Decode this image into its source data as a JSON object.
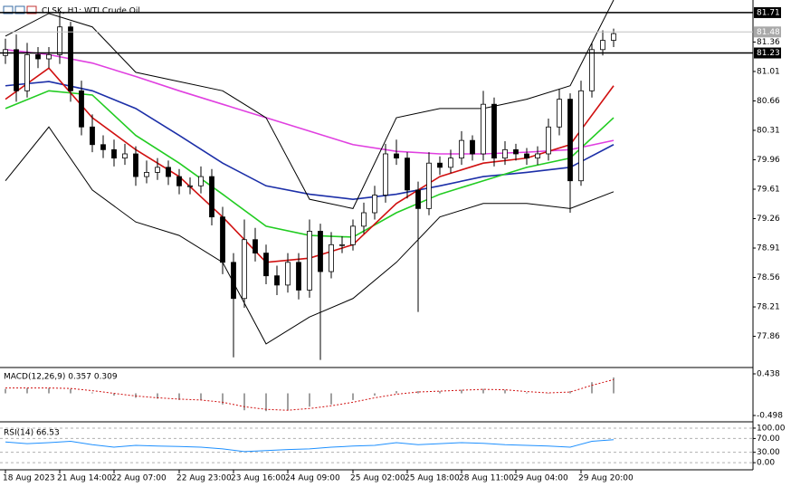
{
  "chart_data": [
    {
      "type": "candlestick",
      "title": "CLSK, H1: WTI Crude Oil",
      "categories": [
        "18 Aug 2023",
        null,
        null,
        null,
        null,
        "21 Aug 14:00",
        null,
        null,
        null,
        null,
        "22 Aug 07:00",
        null,
        null,
        null,
        null,
        null,
        "22 Aug 23:00",
        null,
        null,
        null,
        null,
        "23 Aug 16:00",
        null,
        null,
        null,
        null,
        "24 Aug 09:00",
        null,
        null,
        null,
        null,
        null,
        "25 Aug 02:00",
        null,
        null,
        null,
        null,
        "25 Aug 18:00",
        null,
        null,
        null,
        null,
        "28 Aug 11:00",
        null,
        null,
        null,
        null,
        "29 Aug 04:00",
        null,
        null,
        null,
        null,
        null,
        "29 Aug 20:00",
        null,
        null,
        null
      ],
      "open": [
        81.2,
        81.27,
        80.78,
        81.21,
        81.16,
        81.21,
        81.54,
        80.78,
        80.35,
        80.14,
        80.08,
        79.98,
        80.03,
        79.76,
        79.81,
        79.87,
        79.76,
        79.65,
        79.65,
        79.76,
        79.28,
        78.74,
        78.31,
        79.01,
        78.85,
        78.58,
        78.47,
        78.74,
        78.41,
        79.11,
        78.63,
        78.95,
        78.95,
        79.17,
        79.33,
        79.54,
        80.03,
        79.98,
        79.6,
        79.38,
        79.92,
        79.87,
        79.98,
        80.19,
        80.03,
        80.62,
        79.98,
        80.08,
        80.03,
        79.98,
        80.03,
        80.35,
        80.68,
        79.71,
        80.78,
        81.27,
        81.38
      ],
      "high": [
        81.4,
        81.45,
        81.35,
        81.3,
        81.3,
        81.72,
        81.6,
        80.9,
        80.5,
        80.25,
        80.2,
        80.15,
        80.12,
        79.95,
        79.98,
        79.95,
        79.85,
        79.75,
        79.88,
        79.85,
        79.4,
        78.85,
        79.25,
        79.15,
        78.95,
        78.7,
        78.85,
        78.85,
        79.25,
        79.2,
        79.1,
        79.05,
        79.25,
        79.45,
        79.65,
        80.15,
        80.2,
        80.05,
        79.7,
        80.05,
        80.0,
        80.08,
        80.3,
        80.25,
        80.78,
        80.7,
        80.18,
        80.15,
        80.1,
        80.12,
        80.45,
        80.8,
        80.75,
        80.9,
        81.35,
        81.5,
        81.52
      ],
      "low": [
        81.1,
        80.65,
        80.7,
        81.05,
        81.05,
        81.1,
        80.65,
        80.25,
        80.05,
        79.98,
        79.88,
        79.9,
        79.65,
        79.68,
        79.72,
        79.66,
        79.55,
        79.55,
        79.56,
        79.18,
        78.6,
        77.61,
        78.2,
        78.75,
        78.48,
        78.35,
        78.38,
        78.3,
        78.32,
        77.58,
        78.55,
        78.85,
        78.88,
        79.08,
        79.25,
        79.45,
        79.9,
        79.5,
        78.15,
        79.3,
        79.78,
        79.8,
        79.9,
        79.95,
        79.95,
        79.88,
        79.9,
        79.95,
        79.9,
        79.9,
        79.95,
        80.25,
        79.33,
        79.65,
        80.7,
        81.2,
        81.3
      ],
      "close": [
        81.27,
        80.78,
        81.21,
        81.16,
        81.21,
        81.54,
        80.78,
        80.35,
        80.14,
        80.08,
        79.98,
        80.03,
        79.76,
        79.81,
        79.87,
        79.76,
        79.65,
        79.65,
        79.76,
        79.28,
        78.74,
        78.31,
        79.01,
        78.85,
        78.58,
        78.47,
        78.74,
        78.41,
        79.11,
        78.63,
        78.95,
        78.95,
        79.17,
        79.33,
        79.54,
        80.03,
        79.98,
        79.6,
        79.38,
        79.92,
        79.87,
        79.98,
        80.19,
        80.03,
        80.62,
        79.98,
        80.08,
        80.03,
        79.98,
        80.03,
        80.35,
        80.68,
        79.71,
        80.78,
        81.27,
        81.38,
        81.46
      ],
      "ylim": [
        77.5,
        81.86
      ],
      "yticks": [
        81.36,
        81.01,
        80.66,
        80.31,
        79.96,
        79.61,
        79.26,
        78.91,
        78.56,
        78.21,
        77.86
      ],
      "levels": [
        81.71,
        81.23
      ],
      "current_price": 81.48,
      "bull_color": "#ffffff",
      "bear_color": "#000000",
      "overlays": {
        "x": [
          0,
          4,
          8,
          12,
          16,
          20,
          24,
          28,
          32,
          36,
          40,
          44,
          48,
          52,
          56
        ],
        "series": [
          {
            "color": "#e040e0",
            "values": [
              81.27,
              81.21,
              81.11,
              80.95,
              80.78,
              80.62,
              80.46,
              80.3,
              80.14,
              80.06,
              80.03,
              80.03,
              80.05,
              80.08,
              80.19
            ]
          },
          {
            "color": "#1c2fa8",
            "values": [
              80.84,
              80.89,
              80.78,
              80.57,
              80.25,
              79.92,
              79.65,
              79.55,
              79.49,
              79.55,
              79.65,
              79.76,
              79.81,
              79.87,
              80.14
            ]
          },
          {
            "color": "#22cc22",
            "values": [
              80.57,
              80.78,
              80.73,
              80.25,
              79.92,
              79.55,
              79.17,
              79.06,
              79.04,
              79.33,
              79.55,
              79.71,
              79.87,
              79.98,
              80.46
            ]
          },
          {
            "color": "#d01010",
            "values": [
              80.68,
              81.05,
              80.46,
              80.08,
              79.76,
              79.28,
              78.74,
              78.79,
              78.95,
              79.44,
              79.76,
              79.92,
              79.98,
              80.14,
              80.84
            ]
          },
          {
            "color": "#000000",
            "values": [
              81.43,
              81.7,
              81.54,
              81.0,
              80.89,
              80.78,
              80.46,
              79.49,
              79.38,
              80.46,
              80.57,
              80.57,
              80.68,
              80.84,
              81.86
            ]
          },
          {
            "color": "#000000",
            "values": [
              79.71,
              80.35,
              79.6,
              79.22,
              79.06,
              78.74,
              77.77,
              78.09,
              78.31,
              78.74,
              79.28,
              79.44,
              79.44,
              79.38,
              79.58
            ]
          }
        ]
      }
    },
    {
      "type": "macd",
      "label": "MACD(12,26,9) 0.357 0.309",
      "x": [
        0,
        2,
        4,
        6,
        8,
        10,
        12,
        14,
        16,
        18,
        20,
        22,
        24,
        26,
        28,
        30,
        32,
        34,
        36,
        38,
        40,
        42,
        44,
        46,
        48,
        50,
        52,
        54,
        56
      ],
      "histogram": [
        0.1,
        0.12,
        0.12,
        0.1,
        0.02,
        -0.05,
        -0.1,
        -0.12,
        -0.15,
        -0.15,
        -0.25,
        -0.38,
        -0.4,
        -0.38,
        -0.3,
        -0.25,
        -0.15,
        -0.05,
        0.05,
        0.05,
        0.05,
        0.08,
        0.1,
        0.08,
        0.02,
        0,
        0.05,
        0.25,
        0.357
      ],
      "signal": [
        0.12,
        0.12,
        0.12,
        0.11,
        0.06,
        0,
        -0.06,
        -0.1,
        -0.13,
        -0.15,
        -0.2,
        -0.3,
        -0.36,
        -0.38,
        -0.34,
        -0.28,
        -0.2,
        -0.1,
        -0.02,
        0.03,
        0.05,
        0.07,
        0.09,
        0.08,
        0.04,
        0.01,
        0.03,
        0.18,
        0.309
      ],
      "histogram_color": "#a0a0a0",
      "signal_color": "#d01010",
      "ylim": [
        -0.62,
        0.54
      ],
      "yticks": [
        0.438,
        -0.498
      ]
    },
    {
      "type": "rsi",
      "label": "RSI(14) 66.53",
      "x": [
        0,
        2,
        4,
        6,
        8,
        10,
        12,
        14,
        16,
        18,
        20,
        22,
        24,
        26,
        28,
        30,
        32,
        34,
        36,
        38,
        40,
        42,
        44,
        46,
        48,
        50,
        52,
        54,
        56
      ],
      "values": [
        60,
        55,
        58,
        62,
        52,
        45,
        50,
        48,
        47,
        45,
        40,
        32,
        35,
        38,
        40,
        45,
        48,
        50,
        58,
        52,
        55,
        58,
        56,
        52,
        50,
        48,
        45,
        62,
        66.53
      ],
      "color": "#1e90ff",
      "ylim": [
        -18,
        113
      ],
      "yticks": [
        {
          "value": 100,
          "label": "100.00"
        },
        {
          "value": 70,
          "label": "70.00"
        },
        {
          "value": 30,
          "label": "30.00"
        },
        {
          "value": 0,
          "label": "0.00"
        }
      ]
    }
  ]
}
